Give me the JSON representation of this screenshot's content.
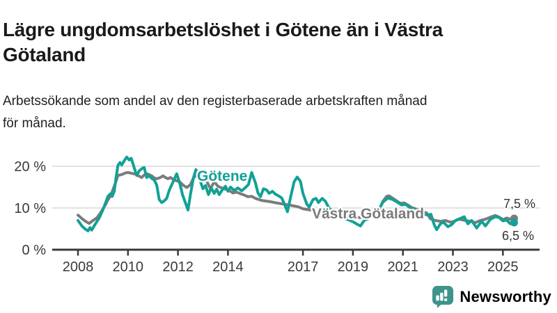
{
  "header": {
    "title_line1": "Lägre ungdomsarbetslöshet i Götene än i Västra",
    "title_line2": "Götaland",
    "subtitle_line1": "Arbetssökande som andel av den registerbaserade arbetskraften månad",
    "subtitle_line2": "för månad."
  },
  "chart_data": {
    "type": "line",
    "title": "Lägre ungdomsarbetslöshet i Götene än i Västra Götaland",
    "subtitle": "Arbetssökande som andel av den registerbaserade arbetskraften månad för månad.",
    "unit": "%",
    "grid": "horizontal",
    "legend_position": "inline-labels",
    "x_axis": {
      "range": [
        2008,
        2025.6
      ],
      "ticks": [
        {
          "year": 2008,
          "label": "2008"
        },
        {
          "year": 2010,
          "label": "2010"
        },
        {
          "year": 2012,
          "label": "2012"
        },
        {
          "year": 2014,
          "label": "2014"
        },
        {
          "year": 2017,
          "label": "2017"
        },
        {
          "year": 2019,
          "label": "2019"
        },
        {
          "year": 2021,
          "label": "2021"
        },
        {
          "year": 2023,
          "label": "2023"
        },
        {
          "year": 2025,
          "label": "2025"
        }
      ]
    },
    "y_axis": {
      "range": [
        0,
        23
      ],
      "ticks": [
        {
          "value": 0,
          "label": "0 %"
        },
        {
          "value": 10,
          "label": "10 %"
        },
        {
          "value": 20,
          "label": "20 %"
        }
      ]
    },
    "series": [
      {
        "id": "vastra-gotaland",
        "name": "Västra Götaland",
        "color": "#7b7b7b",
        "end_label": "7,5 %",
        "end_value": 7.5,
        "points": [
          [
            2008.0,
            8.3
          ],
          [
            2008.17,
            7.4
          ],
          [
            2008.33,
            6.7
          ],
          [
            2008.45,
            6.3
          ],
          [
            2008.6,
            7.0
          ],
          [
            2008.75,
            7.6
          ],
          [
            2008.9,
            8.8
          ],
          [
            2009.0,
            9.8
          ],
          [
            2009.1,
            10.8
          ],
          [
            2009.2,
            12.0
          ],
          [
            2009.3,
            12.8
          ],
          [
            2009.4,
            14.4
          ],
          [
            2009.5,
            16.0
          ],
          [
            2009.6,
            17.8
          ],
          [
            2009.75,
            18.0
          ],
          [
            2009.9,
            18.4
          ],
          [
            2010.0,
            18.5
          ],
          [
            2010.15,
            18.3
          ],
          [
            2010.3,
            18.1
          ],
          [
            2010.45,
            17.6
          ],
          [
            2010.55,
            17.3
          ],
          [
            2010.65,
            17.9
          ],
          [
            2010.75,
            18.2
          ],
          [
            2010.85,
            18.0
          ],
          [
            2010.95,
            17.7
          ],
          [
            2011.05,
            17.2
          ],
          [
            2011.15,
            17.0
          ],
          [
            2011.3,
            17.3
          ],
          [
            2011.4,
            17.7
          ],
          [
            2011.5,
            17.3
          ],
          [
            2011.6,
            17.0
          ],
          [
            2011.7,
            17.3
          ],
          [
            2011.8,
            16.9
          ],
          [
            2011.9,
            16.6
          ],
          [
            2012.0,
            16.4
          ],
          [
            2012.1,
            16.1
          ],
          [
            2012.2,
            15.5
          ],
          [
            2012.35,
            14.9
          ],
          [
            2012.5,
            15.6
          ],
          [
            2012.62,
            17.2
          ],
          [
            2012.73,
            17.8
          ],
          [
            2012.85,
            17.6
          ],
          [
            2013.0,
            17.6
          ],
          [
            2013.15,
            16.4
          ],
          [
            2013.3,
            14.6
          ],
          [
            2013.45,
            16.3
          ],
          [
            2013.6,
            15.2
          ],
          [
            2013.75,
            14.8
          ],
          [
            2013.9,
            14.5
          ],
          [
            2014.05,
            14.2
          ],
          [
            2014.2,
            13.6
          ],
          [
            2014.35,
            13.8
          ],
          [
            2014.5,
            13.4
          ],
          [
            2014.65,
            13.1
          ],
          [
            2014.8,
            12.7
          ],
          [
            2014.95,
            12.8
          ],
          [
            2015.1,
            12.3
          ],
          [
            2015.35,
            11.8
          ],
          [
            2015.7,
            11.5
          ],
          [
            2015.95,
            11.2
          ],
          [
            2016.15,
            11.0
          ],
          [
            2016.35,
            10.8
          ],
          [
            2016.55,
            10.6
          ],
          [
            2016.8,
            10.3
          ],
          [
            2017.0,
            9.8
          ],
          [
            2017.2,
            9.6
          ],
          [
            2017.4,
            9.4
          ],
          [
            2017.6,
            9.1
          ],
          [
            2017.8,
            8.9
          ],
          [
            2018.0,
            8.6
          ],
          [
            2018.25,
            8.3
          ],
          [
            2018.5,
            8.2
          ],
          [
            2018.75,
            8.0
          ],
          [
            2019.0,
            7.8
          ],
          [
            2019.25,
            7.7
          ],
          [
            2019.5,
            7.6
          ],
          [
            2019.75,
            7.8
          ],
          [
            2019.9,
            8.2
          ],
          [
            2020.05,
            9.6
          ],
          [
            2020.2,
            11.6
          ],
          [
            2020.35,
            12.8
          ],
          [
            2020.45,
            12.9
          ],
          [
            2020.6,
            12.3
          ],
          [
            2020.75,
            11.7
          ],
          [
            2020.9,
            11.1
          ],
          [
            2021.05,
            11.2
          ],
          [
            2021.2,
            10.7
          ],
          [
            2021.35,
            10.1
          ],
          [
            2021.5,
            9.8
          ],
          [
            2021.65,
            9.4
          ],
          [
            2021.8,
            9.1
          ],
          [
            2021.95,
            8.8
          ],
          [
            2022.1,
            7.4
          ],
          [
            2022.3,
            7.0
          ],
          [
            2022.5,
            6.8
          ],
          [
            2022.7,
            7.0
          ],
          [
            2022.9,
            6.6
          ],
          [
            2023.05,
            6.8
          ],
          [
            2023.25,
            7.3
          ],
          [
            2023.5,
            7.0
          ],
          [
            2023.7,
            6.8
          ],
          [
            2023.9,
            6.5
          ],
          [
            2024.1,
            7.0
          ],
          [
            2024.3,
            7.3
          ],
          [
            2024.5,
            7.8
          ],
          [
            2024.7,
            8.2
          ],
          [
            2024.85,
            7.8
          ],
          [
            2025.0,
            7.2
          ],
          [
            2025.15,
            7.6
          ],
          [
            2025.3,
            7.3
          ],
          [
            2025.45,
            7.5
          ]
        ]
      },
      {
        "id": "gotene",
        "name": "Götene",
        "color": "#12a195",
        "end_label": "6,5 %",
        "end_value": 6.5,
        "points": [
          [
            2008.0,
            7.0
          ],
          [
            2008.17,
            5.6
          ],
          [
            2008.3,
            4.9
          ],
          [
            2008.4,
            4.5
          ],
          [
            2008.48,
            5.3
          ],
          [
            2008.55,
            4.7
          ],
          [
            2008.7,
            6.2
          ],
          [
            2008.85,
            7.6
          ],
          [
            2009.0,
            9.6
          ],
          [
            2009.1,
            11.2
          ],
          [
            2009.2,
            12.8
          ],
          [
            2009.3,
            13.4
          ],
          [
            2009.37,
            12.8
          ],
          [
            2009.45,
            14.0
          ],
          [
            2009.52,
            17.2
          ],
          [
            2009.6,
            20.2
          ],
          [
            2009.68,
            20.9
          ],
          [
            2009.75,
            20.3
          ],
          [
            2009.85,
            21.3
          ],
          [
            2009.95,
            22.2
          ],
          [
            2010.05,
            21.5
          ],
          [
            2010.13,
            21.9
          ],
          [
            2010.25,
            19.6
          ],
          [
            2010.35,
            17.8
          ],
          [
            2010.45,
            18.9
          ],
          [
            2010.57,
            19.5
          ],
          [
            2010.65,
            19.7
          ],
          [
            2010.75,
            17.3
          ],
          [
            2010.85,
            17.7
          ],
          [
            2010.95,
            17.1
          ],
          [
            2011.05,
            16.7
          ],
          [
            2011.15,
            15.5
          ],
          [
            2011.25,
            12.0
          ],
          [
            2011.35,
            11.3
          ],
          [
            2011.45,
            11.7
          ],
          [
            2011.55,
            12.3
          ],
          [
            2011.65,
            14.2
          ],
          [
            2011.8,
            16.2
          ],
          [
            2011.95,
            18.2
          ],
          [
            2012.07,
            16.0
          ],
          [
            2012.18,
            13.2
          ],
          [
            2012.3,
            11.2
          ],
          [
            2012.4,
            9.5
          ],
          [
            2012.5,
            13.2
          ],
          [
            2012.62,
            17.3
          ],
          [
            2012.72,
            19.2
          ],
          [
            2012.85,
            17.2
          ],
          [
            2013.0,
            14.6
          ],
          [
            2013.1,
            15.4
          ],
          [
            2013.22,
            13.2
          ],
          [
            2013.33,
            14.8
          ],
          [
            2013.45,
            13.5
          ],
          [
            2013.55,
            14.5
          ],
          [
            2013.65,
            13.2
          ],
          [
            2013.78,
            14.4
          ],
          [
            2013.9,
            15.2
          ],
          [
            2014.0,
            14.0
          ],
          [
            2014.1,
            15.0
          ],
          [
            2014.25,
            14.2
          ],
          [
            2014.4,
            14.8
          ],
          [
            2014.55,
            14.1
          ],
          [
            2014.7,
            14.9
          ],
          [
            2014.82,
            15.6
          ],
          [
            2014.95,
            18.5
          ],
          [
            2015.1,
            16.0
          ],
          [
            2015.2,
            13.6
          ],
          [
            2015.3,
            12.7
          ],
          [
            2015.42,
            14.6
          ],
          [
            2015.55,
            14.3
          ],
          [
            2015.65,
            13.5
          ],
          [
            2015.78,
            14.0
          ],
          [
            2015.9,
            13.3
          ],
          [
            2016.0,
            13.0
          ],
          [
            2016.15,
            12.4
          ],
          [
            2016.27,
            10.8
          ],
          [
            2016.38,
            9.1
          ],
          [
            2016.52,
            13.0
          ],
          [
            2016.65,
            16.3
          ],
          [
            2016.77,
            17.4
          ],
          [
            2016.9,
            16.4
          ],
          [
            2017.0,
            13.5
          ],
          [
            2017.15,
            11.0
          ],
          [
            2017.25,
            10.2
          ],
          [
            2017.4,
            12.0
          ],
          [
            2017.52,
            12.3
          ],
          [
            2017.62,
            11.3
          ],
          [
            2017.77,
            12.3
          ],
          [
            2017.9,
            11.6
          ],
          [
            2018.05,
            9.9
          ],
          [
            2018.2,
            9.1
          ],
          [
            2018.4,
            8.3
          ],
          [
            2018.6,
            7.7
          ],
          [
            2018.8,
            7.2
          ],
          [
            2019.0,
            6.7
          ],
          [
            2019.17,
            6.1
          ],
          [
            2019.3,
            5.7
          ],
          [
            2019.45,
            7.0
          ],
          [
            2019.6,
            7.4
          ],
          [
            2019.75,
            7.9
          ],
          [
            2019.9,
            8.5
          ],
          [
            2020.05,
            9.8
          ],
          [
            2020.2,
            11.4
          ],
          [
            2020.4,
            12.4
          ],
          [
            2020.6,
            12.0
          ],
          [
            2020.8,
            11.3
          ],
          [
            2020.95,
            10.7
          ],
          [
            2021.1,
            10.9
          ],
          [
            2021.25,
            10.2
          ],
          [
            2021.4,
            9.7
          ],
          [
            2021.55,
            9.2
          ],
          [
            2021.7,
            8.8
          ],
          [
            2021.85,
            8.5
          ],
          [
            2022.0,
            8.3
          ],
          [
            2022.12,
            8.5
          ],
          [
            2022.25,
            6.0
          ],
          [
            2022.35,
            4.8
          ],
          [
            2022.5,
            6.2
          ],
          [
            2022.62,
            6.6
          ],
          [
            2022.8,
            5.5
          ],
          [
            2022.95,
            6.0
          ],
          [
            2023.1,
            7.0
          ],
          [
            2023.3,
            7.5
          ],
          [
            2023.45,
            7.9
          ],
          [
            2023.6,
            6.2
          ],
          [
            2023.75,
            7.0
          ],
          [
            2023.95,
            5.2
          ],
          [
            2024.15,
            6.8
          ],
          [
            2024.3,
            5.7
          ],
          [
            2024.5,
            7.3
          ],
          [
            2024.7,
            7.9
          ],
          [
            2024.85,
            7.7
          ],
          [
            2025.0,
            6.9
          ],
          [
            2025.15,
            7.1
          ],
          [
            2025.3,
            6.2
          ],
          [
            2025.45,
            6.5
          ]
        ]
      }
    ]
  },
  "branding": {
    "logo_text": "Newsworthy",
    "logo_color": "#3e938d",
    "logo_icon": "bar-chart-speech-bubble"
  },
  "style": {
    "grid_color": "#d8d8d8",
    "axis_color": "#3a3a3a",
    "end_label_color": "#333333"
  }
}
